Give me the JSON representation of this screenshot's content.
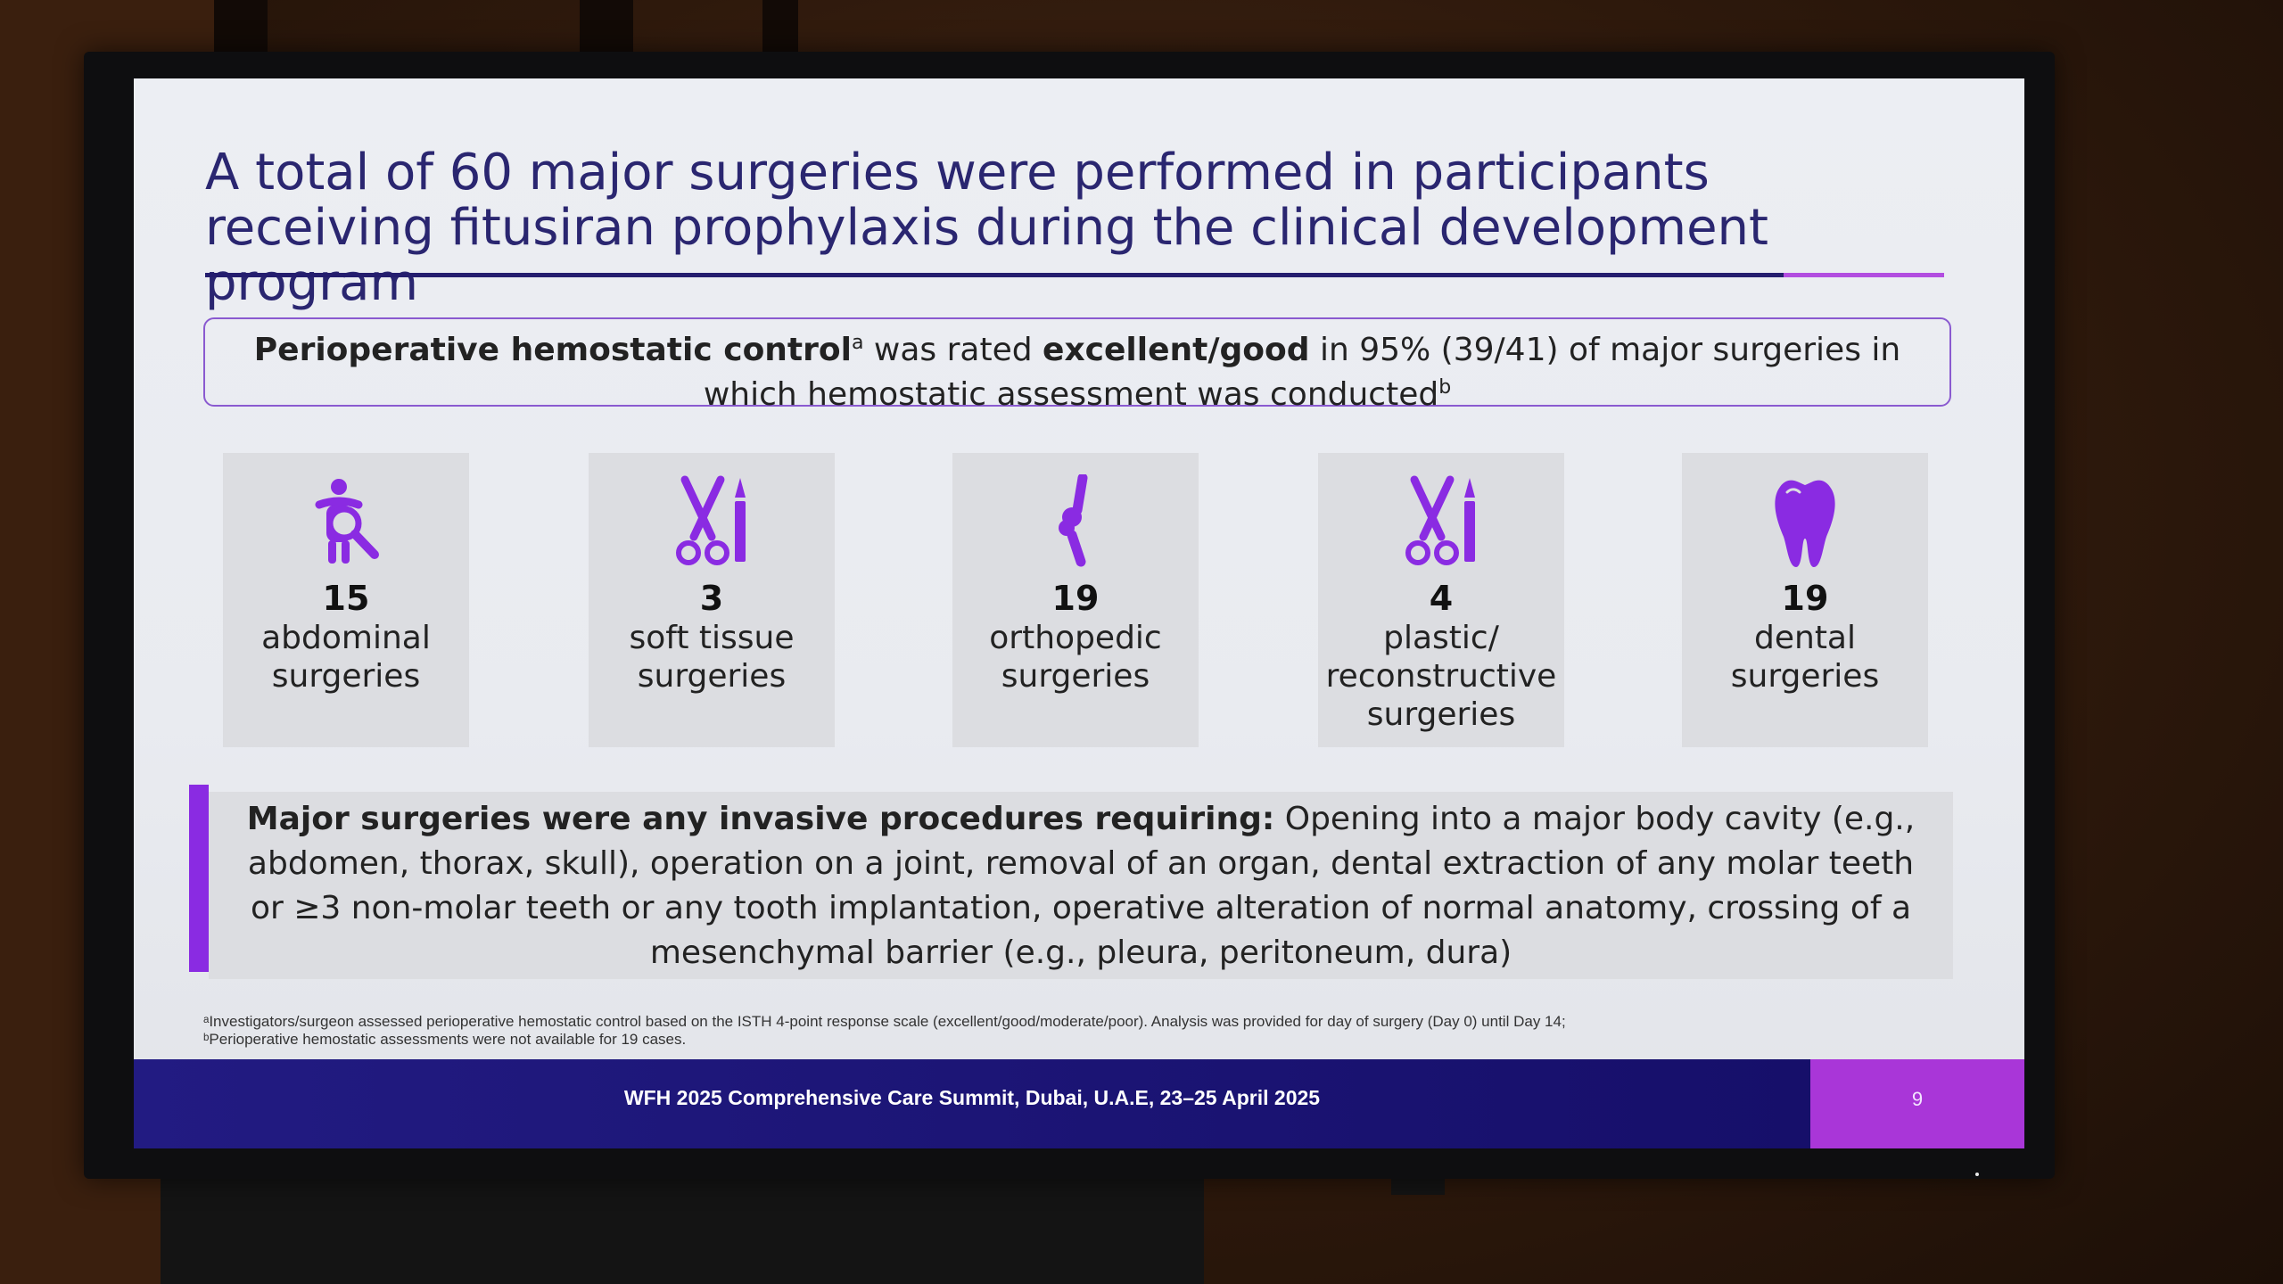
{
  "slide": {
    "title": "A total of 60 major surgeries were performed in participants receiving fitusiran prophylaxis during the clinical development program",
    "highlight": {
      "bold_start": "Perioperative hemostatic control",
      "sup_a": "a",
      "mid": " was rated ",
      "bold_mid": "excellent/good",
      "end": " in 95% (39/41) of major surgeries in which hemostatic assessment was conducted",
      "sup_b": "b"
    },
    "cards": [
      {
        "icon": "abdominal-icon",
        "count": "15",
        "label_1": "abdominal",
        "label_2": "surgeries",
        "label_3": ""
      },
      {
        "icon": "scissors-scalpel-icon",
        "count": "3",
        "label_1": "soft tissue",
        "label_2": "surgeries",
        "label_3": ""
      },
      {
        "icon": "bone-joint-icon",
        "count": "19",
        "label_1": "orthopedic",
        "label_2": "surgeries",
        "label_3": ""
      },
      {
        "icon": "scissors-scalpel-icon",
        "count": "4",
        "label_1": "plastic/",
        "label_2": "reconstructive",
        "label_3": "surgeries"
      },
      {
        "icon": "tooth-icon",
        "count": "19",
        "label_1": "dental",
        "label_2": "surgeries",
        "label_3": ""
      }
    ],
    "definition": {
      "bold": "Major surgeries were any invasive procedures requiring:",
      "text": " Opening into a major body cavity (e.g., abdomen, thorax, skull), operation on a joint, removal of an organ, dental extraction of any molar teeth or ≥3 non-molar teeth or any tooth implantation, operative alteration of normal anatomy, crossing of a mesenchymal barrier (e.g., pleura, peritoneum, dura)"
    },
    "footnotes": {
      "a": "ᵃInvestigators/surgeon assessed perioperative hemostatic control based on the ISTH 4-point response scale (excellent/good/moderate/poor). Analysis was provided for day of surgery (Day 0) until Day 14;",
      "b": "ᵇPerioperative hemostatic assessments were not available for 19 cases."
    },
    "footer": {
      "text": "WFH 2025 Comprehensive Care Summit, Dubai, U.A.E, 23–25 April 2025",
      "page": "9"
    }
  },
  "colors": {
    "title": "#2a2670",
    "accent_purple": "#8a2be2",
    "icon": "#8a2be2",
    "footer_navy": "#1e1878",
    "footer_accent": "#a936d8"
  }
}
